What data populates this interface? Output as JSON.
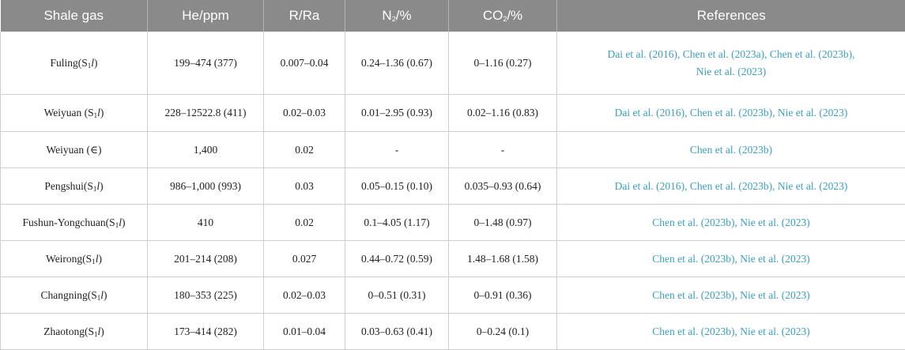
{
  "headers": {
    "shale_gas": "Shale gas",
    "he": "He/ppm",
    "r_ra": "R/Ra",
    "n2_prefix": "N",
    "n2_sub": "2",
    "n2_suffix": "/%",
    "co2_prefix": "CO",
    "co2_sub": "2",
    "co2_suffix": "/%",
    "references": "References"
  },
  "rows": [
    {
      "name": "Fuling(S",
      "sub": "1",
      "it": "l",
      "close": ")",
      "he": "199–474 (377)",
      "rra": "0.007–0.04",
      "n2": "0.24–1.36 (0.67)",
      "co2": "0–1.16 (0.27)",
      "ref_line1": "Dai et al. (2016), Chen et al. (2023a), Chen et al. (2023b),",
      "ref_line2": "Nie et al. (2023)"
    },
    {
      "name": "Weiyuan (S",
      "sub": "1",
      "it": "l",
      "close": ")",
      "he": "228–12522.8 (411)",
      "rra": "0.02–0.03",
      "n2": "0.01–2.95 (0.93)",
      "co2": "0.02–1.16 (0.83)",
      "ref_line1": "Dai et al. (2016), Chen et al. (2023b), Nie et al. (2023)",
      "ref_line2": ""
    },
    {
      "name": "Weiyuan (∈)",
      "sub": "",
      "it": "",
      "close": "",
      "he": "1,400",
      "rra": "0.02",
      "n2": "-",
      "co2": "-",
      "ref_line1": "Chen et al. (2023b)",
      "ref_line2": ""
    },
    {
      "name": "Pengshui(S",
      "sub": "1",
      "it": "l",
      "close": ")",
      "he": "986–1,000 (993)",
      "rra": "0.03",
      "n2": "0.05–0.15 (0.10)",
      "co2": "0.035–0.93 (0.64)",
      "ref_line1": "Dai et al. (2016), Chen et al. (2023b), Nie et al. (2023)",
      "ref_line2": ""
    },
    {
      "name": "Fushun-Yongchuan(S",
      "sub": "1",
      "it": "l",
      "close": ")",
      "he": "410",
      "rra": "0.02",
      "n2": "0.1–4.05 (1.17)",
      "co2": "0–1.48 (0.97)",
      "ref_line1": "Chen et al. (2023b), Nie et al. (2023)",
      "ref_line2": ""
    },
    {
      "name": "Weirong(S",
      "sub": "1",
      "it": "l",
      "close": ")",
      "he": "201–214 (208)",
      "rra": "0.027",
      "n2": "0.44–0.72 (0.59)",
      "co2": "1.48–1.68 (1.58)",
      "ref_line1": "Chen et al. (2023b), Nie et al. (2023)",
      "ref_line2": ""
    },
    {
      "name": "Changning(S",
      "sub": "1",
      "it": "l",
      "close": ")",
      "he": "180–353 (225)",
      "rra": "0.02–0.03",
      "n2": "0–0.51 (0.31)",
      "co2": "0–0.91 (0.36)",
      "ref_line1": "Chen et al. (2023b), Nie et al. (2023)",
      "ref_line2": ""
    },
    {
      "name": "Zhaotong(S",
      "sub": "1",
      "it": "l",
      "close": ")",
      "he": "173–414 (282)",
      "rra": "0.01–0.04",
      "n2": "0.03–0.63 (0.41)",
      "co2": "0–0.24 (0.1)",
      "ref_line1": "Chen et al. (2023b), Nie et al. (2023)",
      "ref_line2": ""
    }
  ]
}
